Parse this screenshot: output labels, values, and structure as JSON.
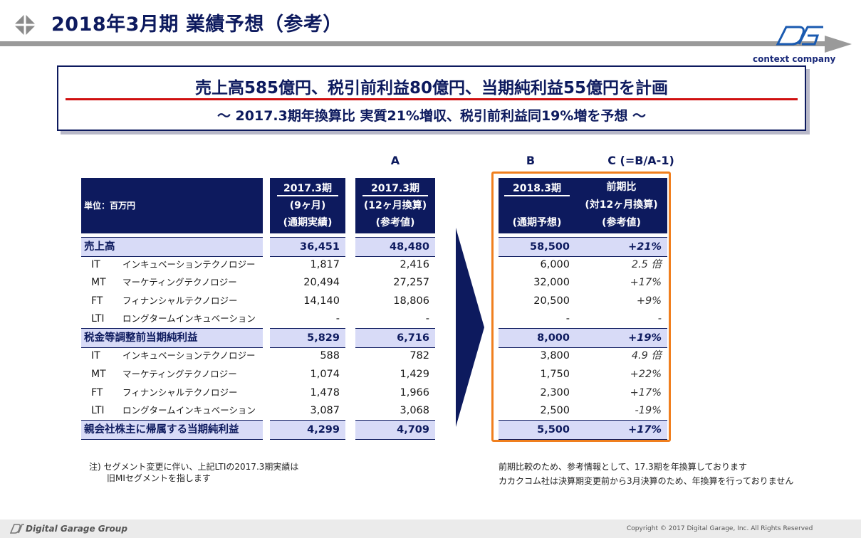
{
  "page": {
    "title": "2018年3月期 業績予想（参考）",
    "company_tagline": "context company"
  },
  "headline": {
    "main": "売上高585億円、税引前利益80億円、当期純利益55億円を計画",
    "sub": "～ 2017.3期年換算比 実質21%増収、税引前利益同19%増を予想 ～"
  },
  "column_labels": {
    "a": "A",
    "b": "B",
    "c": "C (=B/A-1)"
  },
  "table": {
    "unit_label": "単位：百万円",
    "headers": [
      {
        "line1": "2017.3期",
        "line2": "(9ヶ月)",
        "line3": "(通期実績)"
      },
      {
        "line1": "2017.3期",
        "line2": "(12ヶ月換算)",
        "line3": "(参考値)"
      },
      {
        "line1": "2018.3期",
        "line2": "",
        "line3": "(通期予想)"
      },
      {
        "line1": "前期比",
        "line2": "(対12ヶ月換算)",
        "line3": "(参考値)"
      }
    ],
    "rows": [
      {
        "seg": "",
        "label": "売上高",
        "v1": "36,451",
        "v2": "48,480",
        "v3": "58,500",
        "v4": "+21%"
      },
      {
        "seg": "IT",
        "label": "インキュベーションテクノロジー",
        "v1": "1,817",
        "v2": "2,416",
        "v3": "6,000",
        "v4": "2.5 倍"
      },
      {
        "seg": "MT",
        "label": "マーケティングテクノロジー",
        "v1": "20,494",
        "v2": "27,257",
        "v3": "32,000",
        "v4": "+17%"
      },
      {
        "seg": "FT",
        "label": "フィナンシャルテクノロジー",
        "v1": "14,140",
        "v2": "18,806",
        "v3": "20,500",
        "v4": "+9%"
      },
      {
        "seg": "LTI",
        "label": "ロングタームインキュベーション",
        "v1": "-",
        "v2": "-",
        "v3": "-",
        "v4": "-"
      },
      {
        "seg": "",
        "label": "税金等調整前当期純利益",
        "v1": "5,829",
        "v2": "6,716",
        "v3": "8,000",
        "v4": "+19%"
      },
      {
        "seg": "IT",
        "label": "インキュベーションテクノロジー",
        "v1": "588",
        "v2": "782",
        "v3": "3,800",
        "v4": "4.9 倍"
      },
      {
        "seg": "MT",
        "label": "マーケティングテクノロジー",
        "v1": "1,074",
        "v2": "1,429",
        "v3": "1,750",
        "v4": "+22%"
      },
      {
        "seg": "FT",
        "label": "フィナンシャルテクノロジー",
        "v1": "1,478",
        "v2": "1,966",
        "v3": "2,300",
        "v4": "+17%"
      },
      {
        "seg": "LTI",
        "label": "ロングタームインキュベーション",
        "v1": "3,087",
        "v2": "3,068",
        "v3": "2,500",
        "v4": "-19%"
      },
      {
        "seg": "",
        "label": "親会社株主に帰属する当期純利益",
        "v1": "4,299",
        "v2": "4,709",
        "v3": "5,500",
        "v4": "+17%"
      }
    ]
  },
  "notes": {
    "left_line1": "注) セグメント変更に伴い、上記LTIの2017.3期実績は",
    "left_line2": "旧MIセグメントを指します",
    "right_line1": "前期比較のため、参考情報として、17.3期を年換算しております",
    "right_line2": "カカクコム社は決算期変更前から3月決算のため、年換算を行っておりません"
  },
  "footer": {
    "brand": "Digital Garage Group",
    "copyright": "Copyright © 2017 Digital Garage, Inc. All Rights Reserved"
  },
  "colors": {
    "navy": "#0d1a5e",
    "band": "#d8dbf7",
    "highlight_frame": "#f07f1e",
    "headline_rule": "#d01010"
  }
}
